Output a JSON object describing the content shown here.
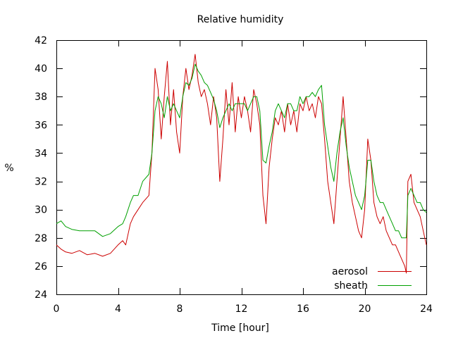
{
  "chart_data": {
    "type": "line",
    "title": "Relative humidity",
    "xlabel": "Time [hour]",
    "ylabel": "%",
    "xlim": [
      0,
      24
    ],
    "ylim": [
      24,
      42
    ],
    "xticks": [
      0,
      4,
      8,
      12,
      16,
      20,
      24
    ],
    "yticks": [
      24,
      26,
      28,
      30,
      32,
      34,
      36,
      38,
      40,
      42
    ],
    "grid": false,
    "legend_position": "bottom-right",
    "series": [
      {
        "name": "aerosol",
        "color": "#cc0000",
        "x": [
          0,
          0.3,
          0.6,
          1,
          1.5,
          2,
          2.5,
          3,
          3.5,
          4,
          4.3,
          4.5,
          4.8,
          5,
          5.3,
          5.6,
          6,
          6.2,
          6.4,
          6.6,
          6.8,
          7,
          7.2,
          7.4,
          7.6,
          7.8,
          8,
          8.2,
          8.4,
          8.6,
          8.8,
          9,
          9.2,
          9.4,
          9.6,
          9.8,
          10,
          10.2,
          10.4,
          10.6,
          10.8,
          11,
          11.2,
          11.4,
          11.6,
          11.8,
          12,
          12.2,
          12.4,
          12.6,
          12.8,
          13,
          13.2,
          13.4,
          13.6,
          13.8,
          14,
          14.2,
          14.4,
          14.6,
          14.8,
          15,
          15.2,
          15.4,
          15.6,
          15.8,
          16,
          16.2,
          16.4,
          16.6,
          16.8,
          17,
          17.2,
          17.4,
          17.6,
          17.8,
          18,
          18.2,
          18.4,
          18.6,
          18.8,
          19,
          19.2,
          19.4,
          19.6,
          19.8,
          20,
          20.2,
          20.4,
          20.6,
          20.8,
          21,
          21.2,
          21.4,
          21.6,
          21.8,
          22,
          22.2,
          22.4,
          22.6,
          22.7,
          22.8,
          23,
          23.2,
          23.4,
          23.6,
          23.8,
          24
        ],
        "y": [
          27.5,
          27.2,
          27.0,
          26.9,
          27.1,
          26.8,
          26.9,
          26.7,
          26.9,
          27.5,
          27.8,
          27.5,
          29.0,
          29.5,
          30.0,
          30.5,
          31.0,
          34.0,
          40.0,
          38.5,
          35.0,
          38.0,
          40.5,
          36.0,
          38.5,
          35.5,
          34.0,
          38.0,
          40.0,
          38.5,
          39.5,
          41.0,
          39.0,
          38.0,
          38.5,
          37.5,
          36.0,
          38.0,
          36.5,
          32.0,
          35.0,
          38.5,
          36.0,
          39.0,
          35.5,
          38.0,
          36.5,
          38.0,
          37.0,
          35.5,
          38.5,
          37.5,
          36.0,
          31.0,
          29.0,
          33.0,
          35.0,
          36.5,
          36.0,
          37.0,
          35.5,
          37.5,
          36.0,
          37.0,
          35.5,
          37.5,
          37.0,
          38.0,
          37.0,
          37.5,
          36.5,
          38.0,
          37.5,
          35.0,
          32.0,
          30.5,
          29.0,
          32.0,
          35.0,
          38.0,
          35.0,
          32.0,
          30.5,
          29.5,
          28.5,
          28.0,
          30.0,
          35.0,
          33.5,
          30.5,
          29.5,
          29.0,
          29.5,
          28.5,
          28.0,
          27.5,
          27.5,
          27.0,
          26.5,
          26.0,
          25.5,
          32.0,
          32.5,
          30.5,
          30.0,
          29.5,
          28.5,
          27.5
        ]
      },
      {
        "name": "sheath",
        "color": "#00a000",
        "x": [
          0,
          0.3,
          0.6,
          1,
          1.5,
          2,
          2.5,
          3,
          3.5,
          4,
          4.3,
          4.5,
          4.8,
          5,
          5.3,
          5.6,
          6,
          6.2,
          6.4,
          6.6,
          6.8,
          7,
          7.2,
          7.4,
          7.6,
          7.8,
          8,
          8.2,
          8.4,
          8.6,
          8.8,
          9,
          9.2,
          9.4,
          9.6,
          9.8,
          10,
          10.2,
          10.4,
          10.6,
          10.8,
          11,
          11.2,
          11.4,
          11.6,
          11.8,
          12,
          12.2,
          12.4,
          12.6,
          12.8,
          13,
          13.2,
          13.4,
          13.6,
          13.8,
          14,
          14.2,
          14.4,
          14.6,
          14.8,
          15,
          15.2,
          15.4,
          15.6,
          15.8,
          16,
          16.2,
          16.4,
          16.6,
          16.8,
          17,
          17.2,
          17.4,
          17.6,
          17.8,
          18,
          18.2,
          18.4,
          18.6,
          18.8,
          19,
          19.2,
          19.4,
          19.6,
          19.8,
          20,
          20.2,
          20.4,
          20.6,
          20.8,
          21,
          21.2,
          21.4,
          21.6,
          21.8,
          22,
          22.2,
          22.4,
          22.6,
          22.7,
          22.8,
          23,
          23.2,
          23.4,
          23.6,
          23.8,
          24
        ],
        "y": [
          29.0,
          29.2,
          28.8,
          28.6,
          28.5,
          28.5,
          28.5,
          28.1,
          28.3,
          28.8,
          29.0,
          29.5,
          30.5,
          31.0,
          31.0,
          32.0,
          32.5,
          34.0,
          37.0,
          38.0,
          37.5,
          36.5,
          38.0,
          37.0,
          37.5,
          37.0,
          36.5,
          38.0,
          39.0,
          38.8,
          39.3,
          40.3,
          39.8,
          39.5,
          39.0,
          38.8,
          38.3,
          37.8,
          37.0,
          35.8,
          36.5,
          37.0,
          37.5,
          37.0,
          37.5,
          37.5,
          37.5,
          37.5,
          37.0,
          37.5,
          38.0,
          38.0,
          37.0,
          33.5,
          33.3,
          34.5,
          35.5,
          37.0,
          37.5,
          37.0,
          36.5,
          37.5,
          37.5,
          37.0,
          37.0,
          38.0,
          37.5,
          38.0,
          38.0,
          38.3,
          38.0,
          38.5,
          38.8,
          36.0,
          34.5,
          33.0,
          32.0,
          34.0,
          35.5,
          36.5,
          34.5,
          33.0,
          32.0,
          31.0,
          30.5,
          30.0,
          31.0,
          33.5,
          33.5,
          32.0,
          31.0,
          30.5,
          30.5,
          30.0,
          29.5,
          29.0,
          28.5,
          28.5,
          28.0,
          28.0,
          28.0,
          31.0,
          31.5,
          31.0,
          30.5,
          30.5,
          30.0,
          29.8
        ]
      }
    ]
  }
}
